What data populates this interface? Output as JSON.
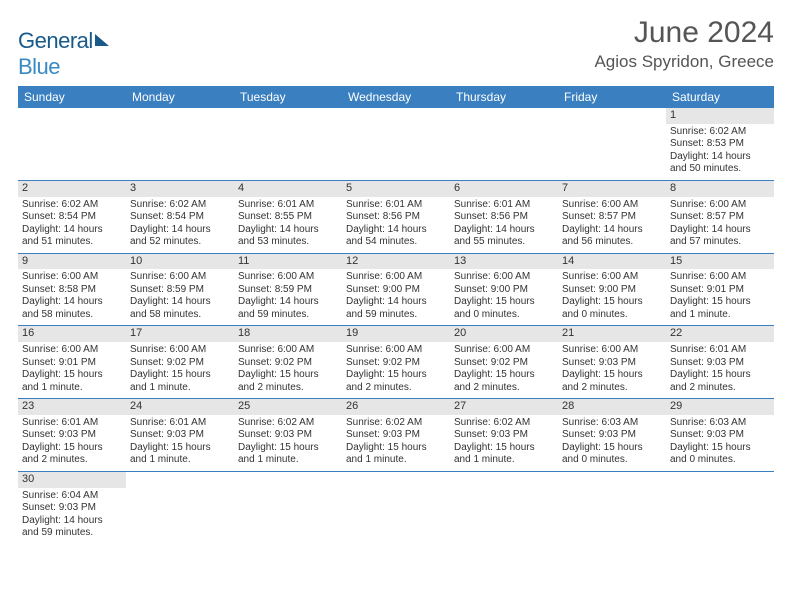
{
  "logo": {
    "text1": "General",
    "text2": "Blue",
    "sail_color": "#1a5a8a"
  },
  "title": "June 2024",
  "location": "Agios Spyridon, Greece",
  "header_bg": "#3a7fbf",
  "header_fg": "#ffffff",
  "daynum_bg": "#e6e6e6",
  "border_color": "#3a7fbf",
  "weekdays": [
    "Sunday",
    "Monday",
    "Tuesday",
    "Wednesday",
    "Thursday",
    "Friday",
    "Saturday"
  ],
  "weeks": [
    [
      null,
      null,
      null,
      null,
      null,
      null,
      {
        "n": "1",
        "sr": "Sunrise: 6:02 AM",
        "ss": "Sunset: 8:53 PM",
        "dl": "Daylight: 14 hours and 50 minutes."
      }
    ],
    [
      {
        "n": "2",
        "sr": "Sunrise: 6:02 AM",
        "ss": "Sunset: 8:54 PM",
        "dl": "Daylight: 14 hours and 51 minutes."
      },
      {
        "n": "3",
        "sr": "Sunrise: 6:02 AM",
        "ss": "Sunset: 8:54 PM",
        "dl": "Daylight: 14 hours and 52 minutes."
      },
      {
        "n": "4",
        "sr": "Sunrise: 6:01 AM",
        "ss": "Sunset: 8:55 PM",
        "dl": "Daylight: 14 hours and 53 minutes."
      },
      {
        "n": "5",
        "sr": "Sunrise: 6:01 AM",
        "ss": "Sunset: 8:56 PM",
        "dl": "Daylight: 14 hours and 54 minutes."
      },
      {
        "n": "6",
        "sr": "Sunrise: 6:01 AM",
        "ss": "Sunset: 8:56 PM",
        "dl": "Daylight: 14 hours and 55 minutes."
      },
      {
        "n": "7",
        "sr": "Sunrise: 6:00 AM",
        "ss": "Sunset: 8:57 PM",
        "dl": "Daylight: 14 hours and 56 minutes."
      },
      {
        "n": "8",
        "sr": "Sunrise: 6:00 AM",
        "ss": "Sunset: 8:57 PM",
        "dl": "Daylight: 14 hours and 57 minutes."
      }
    ],
    [
      {
        "n": "9",
        "sr": "Sunrise: 6:00 AM",
        "ss": "Sunset: 8:58 PM",
        "dl": "Daylight: 14 hours and 58 minutes."
      },
      {
        "n": "10",
        "sr": "Sunrise: 6:00 AM",
        "ss": "Sunset: 8:59 PM",
        "dl": "Daylight: 14 hours and 58 minutes."
      },
      {
        "n": "11",
        "sr": "Sunrise: 6:00 AM",
        "ss": "Sunset: 8:59 PM",
        "dl": "Daylight: 14 hours and 59 minutes."
      },
      {
        "n": "12",
        "sr": "Sunrise: 6:00 AM",
        "ss": "Sunset: 9:00 PM",
        "dl": "Daylight: 14 hours and 59 minutes."
      },
      {
        "n": "13",
        "sr": "Sunrise: 6:00 AM",
        "ss": "Sunset: 9:00 PM",
        "dl": "Daylight: 15 hours and 0 minutes."
      },
      {
        "n": "14",
        "sr": "Sunrise: 6:00 AM",
        "ss": "Sunset: 9:00 PM",
        "dl": "Daylight: 15 hours and 0 minutes."
      },
      {
        "n": "15",
        "sr": "Sunrise: 6:00 AM",
        "ss": "Sunset: 9:01 PM",
        "dl": "Daylight: 15 hours and 1 minute."
      }
    ],
    [
      {
        "n": "16",
        "sr": "Sunrise: 6:00 AM",
        "ss": "Sunset: 9:01 PM",
        "dl": "Daylight: 15 hours and 1 minute."
      },
      {
        "n": "17",
        "sr": "Sunrise: 6:00 AM",
        "ss": "Sunset: 9:02 PM",
        "dl": "Daylight: 15 hours and 1 minute."
      },
      {
        "n": "18",
        "sr": "Sunrise: 6:00 AM",
        "ss": "Sunset: 9:02 PM",
        "dl": "Daylight: 15 hours and 2 minutes."
      },
      {
        "n": "19",
        "sr": "Sunrise: 6:00 AM",
        "ss": "Sunset: 9:02 PM",
        "dl": "Daylight: 15 hours and 2 minutes."
      },
      {
        "n": "20",
        "sr": "Sunrise: 6:00 AM",
        "ss": "Sunset: 9:02 PM",
        "dl": "Daylight: 15 hours and 2 minutes."
      },
      {
        "n": "21",
        "sr": "Sunrise: 6:00 AM",
        "ss": "Sunset: 9:03 PM",
        "dl": "Daylight: 15 hours and 2 minutes."
      },
      {
        "n": "22",
        "sr": "Sunrise: 6:01 AM",
        "ss": "Sunset: 9:03 PM",
        "dl": "Daylight: 15 hours and 2 minutes."
      }
    ],
    [
      {
        "n": "23",
        "sr": "Sunrise: 6:01 AM",
        "ss": "Sunset: 9:03 PM",
        "dl": "Daylight: 15 hours and 2 minutes."
      },
      {
        "n": "24",
        "sr": "Sunrise: 6:01 AM",
        "ss": "Sunset: 9:03 PM",
        "dl": "Daylight: 15 hours and 1 minute."
      },
      {
        "n": "25",
        "sr": "Sunrise: 6:02 AM",
        "ss": "Sunset: 9:03 PM",
        "dl": "Daylight: 15 hours and 1 minute."
      },
      {
        "n": "26",
        "sr": "Sunrise: 6:02 AM",
        "ss": "Sunset: 9:03 PM",
        "dl": "Daylight: 15 hours and 1 minute."
      },
      {
        "n": "27",
        "sr": "Sunrise: 6:02 AM",
        "ss": "Sunset: 9:03 PM",
        "dl": "Daylight: 15 hours and 1 minute."
      },
      {
        "n": "28",
        "sr": "Sunrise: 6:03 AM",
        "ss": "Sunset: 9:03 PM",
        "dl": "Daylight: 15 hours and 0 minutes."
      },
      {
        "n": "29",
        "sr": "Sunrise: 6:03 AM",
        "ss": "Sunset: 9:03 PM",
        "dl": "Daylight: 15 hours and 0 minutes."
      }
    ],
    [
      {
        "n": "30",
        "sr": "Sunrise: 6:04 AM",
        "ss": "Sunset: 9:03 PM",
        "dl": "Daylight: 14 hours and 59 minutes."
      },
      null,
      null,
      null,
      null,
      null,
      null
    ]
  ]
}
